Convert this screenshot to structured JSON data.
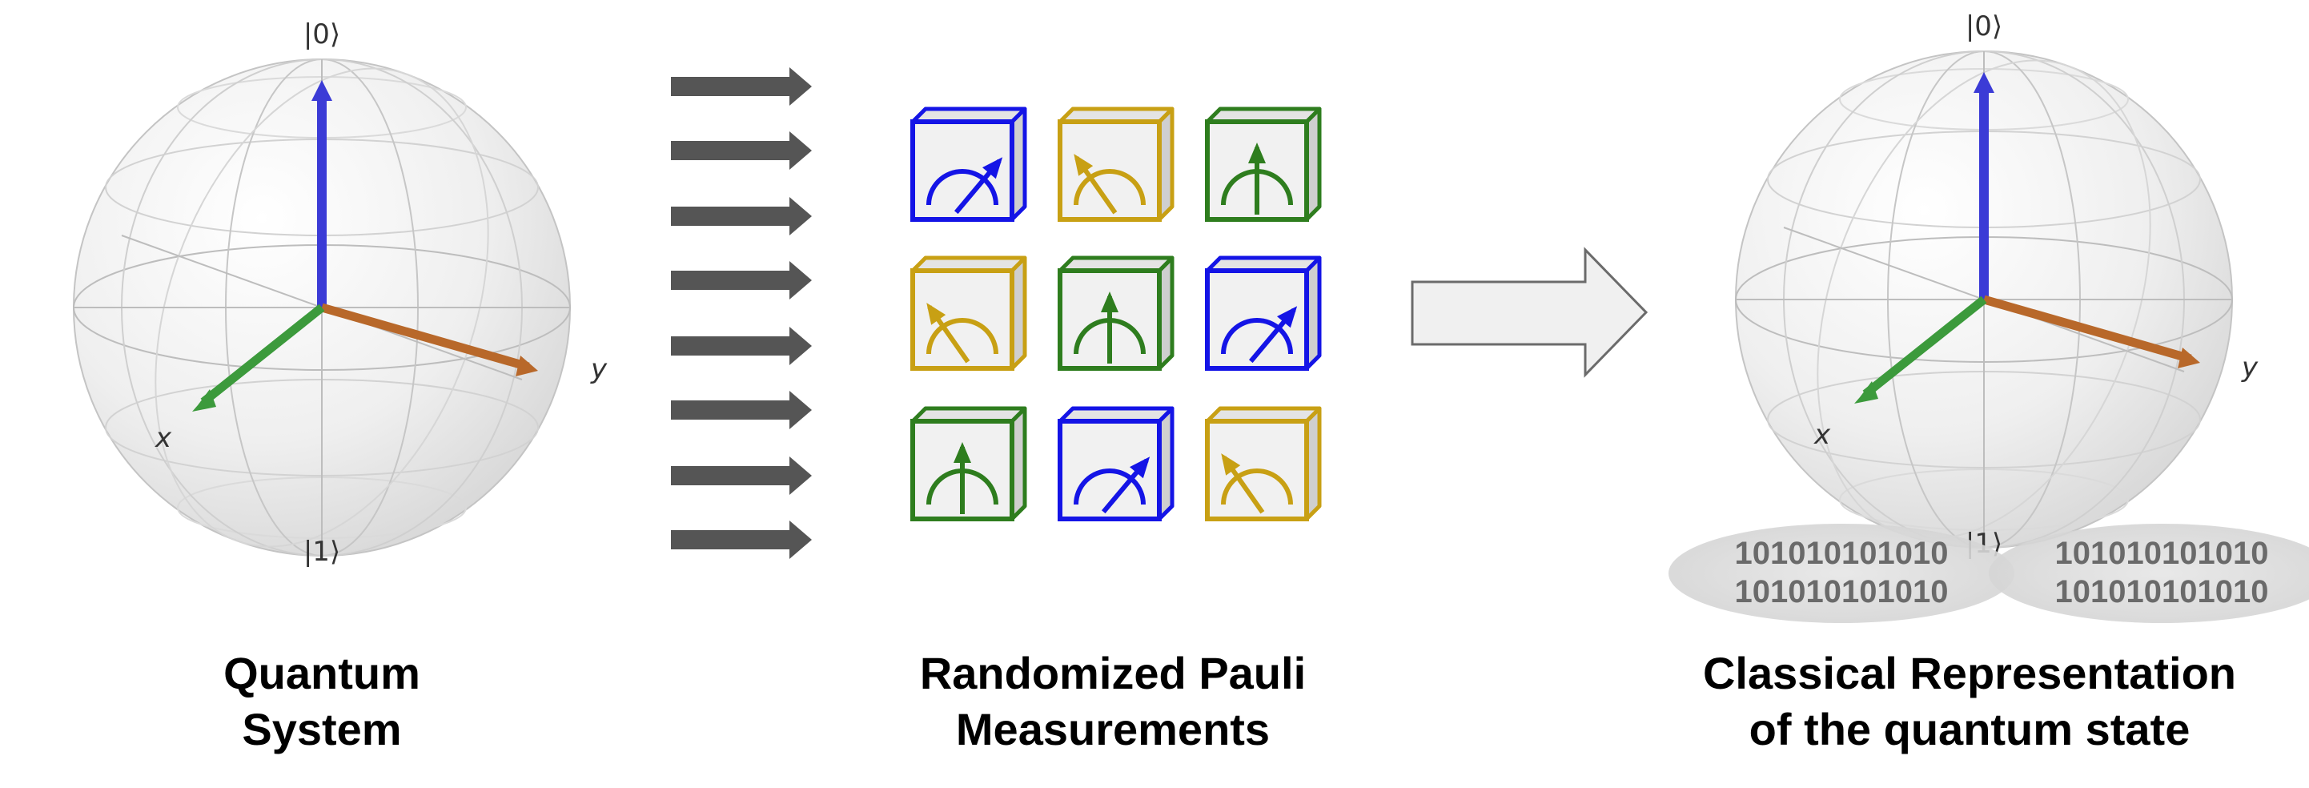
{
  "bloch_left": {
    "ket_zero": "|0⟩",
    "ket_one": "|1⟩",
    "axis_x": "x",
    "axis_y": "y"
  },
  "bloch_right": {
    "ket_zero": "|0⟩",
    "ket_one": "|1⟩",
    "axis_x": "x",
    "axis_y": "y",
    "bitstrings_left": [
      "101010101010",
      "101010101010"
    ],
    "bitstrings_right": [
      "101010101010",
      "101010101010"
    ]
  },
  "colors": {
    "blue": "#1414e6",
    "gold": "#c8a014",
    "green": "#2e7d1e",
    "z_axis": "#3b3bd6",
    "y_axis": "#b8682a",
    "x_axis": "#3c9a3c",
    "stream_arrow": "#555555"
  },
  "meter_grid": [
    [
      "blue",
      "gold",
      "green"
    ],
    [
      "gold",
      "green",
      "blue"
    ],
    [
      "green",
      "blue",
      "gold"
    ]
  ],
  "captions": {
    "left": [
      "Quantum",
      "System"
    ],
    "middle": [
      "Randomized Pauli",
      "Measurements"
    ],
    "right": [
      "Classical Representation",
      "of the quantum state"
    ]
  }
}
